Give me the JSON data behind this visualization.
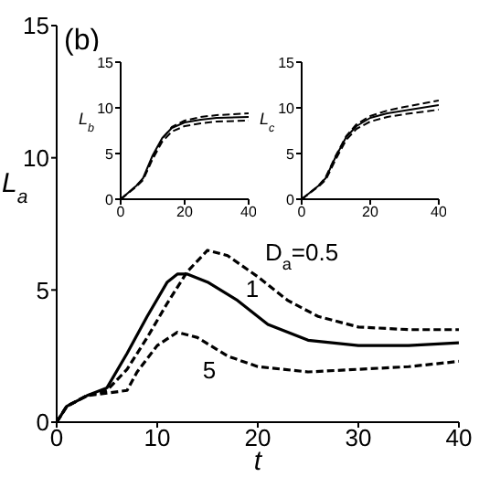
{
  "chart_data": [
    {
      "type": "line",
      "xlabel": "t",
      "ylabel": "L$_{a}$",
      "xlim": [
        0,
        40
      ],
      "xticks": [
        0,
        10,
        20,
        30,
        40
      ],
      "ylim": [
        0,
        15
      ],
      "yticks": [
        0,
        5,
        10,
        15
      ],
      "annotations": [
        "(b)"
      ],
      "series": [
        {
          "name": "D$_{a}$=0.5",
          "color": "#000000",
          "line_style": "dashed",
          "x": [
            0,
            1,
            3,
            5,
            7,
            9,
            11,
            13,
            15,
            17,
            20,
            23,
            26,
            30,
            35,
            40
          ],
          "values": [
            0,
            0.6,
            1.0,
            1.2,
            2.0,
            3.2,
            4.5,
            5.7,
            6.5,
            6.3,
            5.5,
            4.6,
            4.0,
            3.6,
            3.5,
            3.5
          ]
        },
        {
          "name": "1",
          "color": "#000000",
          "line_style": "solid",
          "x": [
            0,
            1,
            3,
            5,
            7,
            9,
            11,
            12,
            13,
            15,
            18,
            21,
            25,
            30,
            35,
            40
          ],
          "values": [
            0,
            0.6,
            1.0,
            1.3,
            2.6,
            4.0,
            5.3,
            5.6,
            5.6,
            5.3,
            4.6,
            3.7,
            3.1,
            2.9,
            2.9,
            3.0
          ]
        },
        {
          "name": "5",
          "color": "#000000",
          "line_style": "dashed",
          "x": [
            0,
            1,
            3,
            5,
            7,
            8,
            10,
            12,
            14,
            17,
            20,
            25,
            30,
            35,
            40
          ],
          "values": [
            0,
            0.6,
            1.0,
            1.1,
            1.2,
            1.9,
            2.9,
            3.4,
            3.2,
            2.5,
            2.1,
            1.9,
            2.0,
            2.1,
            2.3
          ]
        }
      ]
    },
    {
      "type": "line",
      "ylabel": "L$_{b}$",
      "xlim": [
        0,
        40
      ],
      "xticks": [
        0,
        20,
        40
      ],
      "ylim": [
        0,
        15
      ],
      "yticks": [
        0,
        5,
        10,
        15
      ],
      "series": [
        {
          "color": "#000000",
          "line_style": "dashed",
          "x": [
            0,
            5,
            7,
            10,
            13,
            16,
            20,
            25,
            30,
            40
          ],
          "values": [
            0,
            1.5,
            2.2,
            4.6,
            6.6,
            7.9,
            8.6,
            9.0,
            9.2,
            9.4
          ]
        },
        {
          "color": "#000000",
          "line_style": "solid",
          "x": [
            0,
            5,
            7,
            10,
            13,
            16,
            20,
            25,
            30,
            40
          ],
          "values": [
            0,
            1.5,
            2.3,
            4.8,
            6.7,
            7.8,
            8.4,
            8.7,
            8.9,
            9.0
          ]
        },
        {
          "color": "#000000",
          "line_style": "dashed",
          "x": [
            0,
            5,
            7,
            10,
            13,
            16,
            20,
            25,
            30,
            40
          ],
          "values": [
            0,
            1.4,
            2.1,
            4.4,
            6.3,
            7.4,
            8.0,
            8.3,
            8.5,
            8.6
          ]
        }
      ]
    },
    {
      "type": "line",
      "ylabel": "L$_{c}$",
      "xlim": [
        0,
        40
      ],
      "xticks": [
        0,
        20,
        40
      ],
      "ylim": [
        0,
        15
      ],
      "yticks": [
        0,
        5,
        10,
        15
      ],
      "series": [
        {
          "color": "#000000",
          "line_style": "dashed",
          "x": [
            0,
            5,
            7,
            10,
            13,
            16,
            20,
            25,
            30,
            40
          ],
          "values": [
            0,
            1.5,
            2.4,
            4.8,
            6.9,
            8.2,
            9.1,
            9.7,
            10.1,
            10.8
          ]
        },
        {
          "color": "#000000",
          "line_style": "solid",
          "x": [
            0,
            5,
            7,
            10,
            13,
            16,
            20,
            25,
            30,
            40
          ],
          "values": [
            0,
            1.5,
            2.3,
            4.7,
            6.8,
            8.0,
            8.9,
            9.4,
            9.7,
            10.3
          ]
        },
        {
          "color": "#000000",
          "line_style": "dashed",
          "x": [
            0,
            5,
            7,
            10,
            13,
            16,
            20,
            25,
            30,
            40
          ],
          "values": [
            0,
            1.4,
            2.1,
            4.4,
            6.5,
            7.7,
            8.5,
            9.0,
            9.3,
            9.8
          ]
        }
      ]
    }
  ]
}
